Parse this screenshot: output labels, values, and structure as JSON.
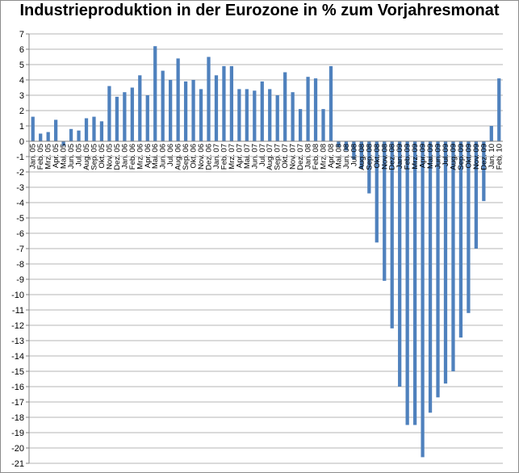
{
  "chart_data": {
    "type": "bar",
    "title": "Industrieproduktion in der Eurozone in % zum Vorjahresmonat",
    "xlabel": "",
    "ylabel": "",
    "ylim": [
      -21,
      7
    ],
    "yticks": [
      7,
      6,
      5,
      4,
      3,
      2,
      1,
      0,
      -1,
      -2,
      -3,
      -4,
      -5,
      -6,
      -7,
      -8,
      -9,
      -10,
      -11,
      -12,
      -13,
      -14,
      -15,
      -16,
      -17,
      -18,
      -19,
      -20,
      -21
    ],
    "grid": true,
    "legend": "none",
    "bar_color": "#4f81bd",
    "categories": [
      "Jan. 05",
      "Feb. 05",
      "Mrz. 05",
      "Apr. 05",
      "Mai. 05",
      "Jun. 05",
      "Jul. 05",
      "Aug. 05",
      "Sep. 05",
      "Okt. 05",
      "Nov. 05",
      "Dez. 05",
      "Jan. 06",
      "Feb. 06",
      "Mrz. 06",
      "Apr. 06",
      "Mai. 06",
      "Jun. 06",
      "Jul. 06",
      "Aug. 06",
      "Sep. 06",
      "Okt. 06",
      "Nov. 06",
      "Dez. 06",
      "Jan. 07",
      "Feb. 07",
      "Mrz. 07",
      "Apr. 07",
      "Mai. 07",
      "Jun. 07",
      "Jul. 07",
      "Aug. 07",
      "Sep. 07",
      "Okt. 07",
      "Nov. 07",
      "Dez. 07",
      "Jan. 08",
      "Feb. 08",
      "Mrz. 08",
      "Apr. 08",
      "Mai. 08",
      "Jun. 08",
      "Jul. 08",
      "Aug. 08",
      "Sep. 08",
      "Okt. 08",
      "Nov. 08",
      "Dez. 08",
      "Jan. 09",
      "Feb. 09",
      "Mrz. 09",
      "Apr. 09",
      "Mai. 09",
      "Jun. 09",
      "Jul. 09",
      "Aug. 09",
      "Sep. 09",
      "Okt. 09",
      "Nov. 09",
      "Dez. 09",
      "Jan. 10",
      "Feb. 10"
    ],
    "tick_labels": [
      "Jan. 05",
      "Feb. 05",
      "Mrz. 05",
      "Apr. 05",
      "Mai. 05",
      "Jun. 05",
      "Jul. 05",
      "Aug. 05",
      "Sep. 05",
      "Okt. 05",
      "Nov. 05",
      "Dez. 05",
      "Jan. 06",
      "Feb. 06",
      "Mrz. 06",
      "Apr. 06",
      "Mai. 06",
      "Jun. 06",
      "Jul. 06",
      "Aug. 06",
      "Sep. 06",
      "Okt. 06",
      "Nov. 06",
      "Dez. 06",
      "Jan. 07",
      "Feb. 07",
      "Mrz. 07",
      "Apr. 07",
      "Mai. 07",
      "Jun. 07",
      "Jul. 07",
      "Aug. 07",
      "Sep. 07",
      "Okt. 07",
      "Nov. 07",
      "Dez. 07",
      "Jan. 08",
      "Feb. 08",
      "Mrz. 08",
      "Apr. 08",
      "Mai. 08",
      "Jun. 08",
      "Jul. 08",
      "Aug. 08",
      "Sep. 08",
      "Okt. 08",
      "Nov. 08",
      "Dez. 08",
      "Jan. 09",
      "Feb. 09",
      "Mrz. 09",
      "Apr. 09",
      "Mai. 09",
      "Jun. 09",
      "Jul. 09",
      "Aug. 09",
      "Sep. 09",
      "Okt. 09",
      "Nov. 09",
      "Dez. 09",
      "Jan. 10",
      "Feb. 10"
    ],
    "values": [
      1.6,
      0.5,
      0.6,
      1.4,
      -0.3,
      0.8,
      0.7,
      1.5,
      1.6,
      1.3,
      3.6,
      2.9,
      3.2,
      3.5,
      4.3,
      3.0,
      6.2,
      4.6,
      4.0,
      5.4,
      3.9,
      4.0,
      3.4,
      5.5,
      4.3,
      4.9,
      4.9,
      3.4,
      3.4,
      3.3,
      3.9,
      3.4,
      3.0,
      4.5,
      3.2,
      2.1,
      4.2,
      4.1,
      2.1,
      4.9,
      -0.4,
      -0.6,
      -1.2,
      -1.8,
      -3.4,
      -6.6,
      -9.1,
      -12.2,
      -16.0,
      -18.5,
      -18.5,
      -20.6,
      -17.7,
      -16.7,
      -15.8,
      -15.0,
      -12.8,
      -11.2,
      -7.0,
      -3.9,
      1.0,
      4.1
    ]
  }
}
